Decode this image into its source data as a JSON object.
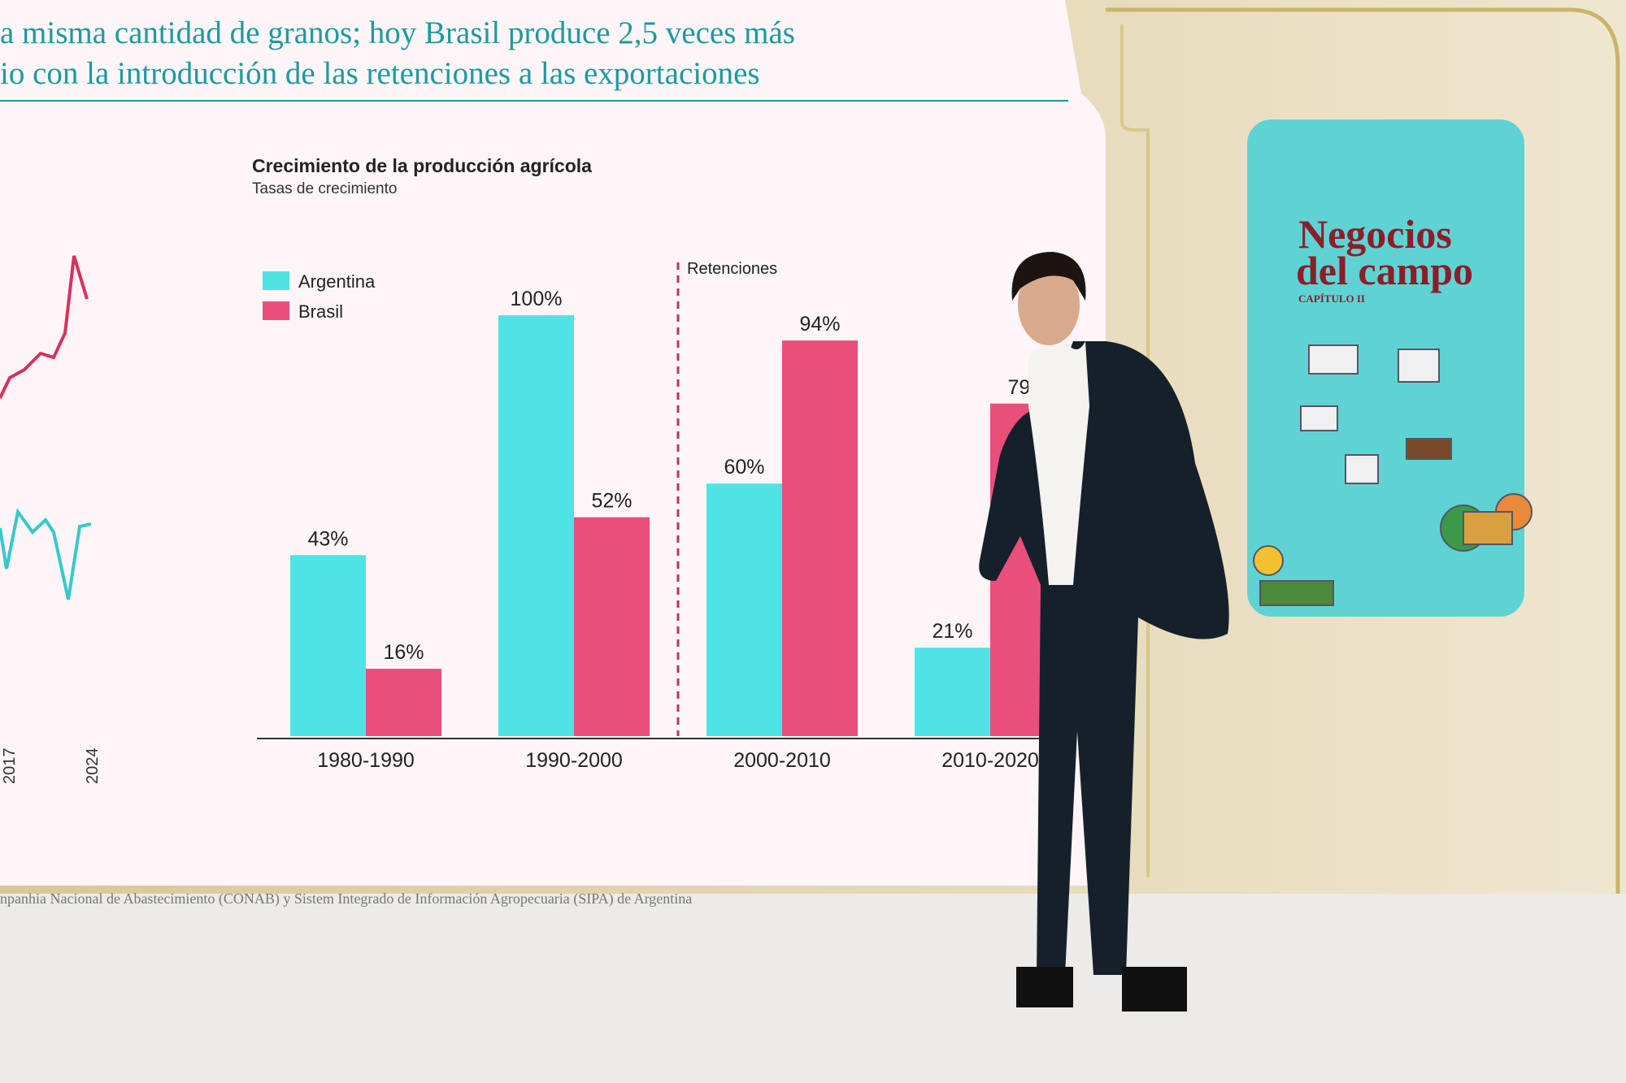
{
  "headline": [
    "a misma cantidad de granos; hoy Brasil produce 2,5 veces más",
    "io con la introducción de las retenciones a las exportaciones"
  ],
  "left_chart_labels": [
    "2017",
    "2024"
  ],
  "source": "npanhia Nacional de Abastecimiento (CONAB) y Sistem Integrado de Información Agropecuaria (SIPA) de Argentina",
  "side_panel": {
    "title_line1": "Negocios",
    "title_line2": "del campo",
    "chapter": "CAPÍTULO II"
  },
  "chart_data": {
    "type": "bar",
    "title": "Crecimiento de la producción agrícola",
    "subtitle": "Tasas de crecimiento",
    "categories": [
      "1980-1990",
      "1990-2000",
      "2000-2010",
      "2010-2020"
    ],
    "series": [
      {
        "name": "Argentina",
        "color": "#4fe3e6",
        "values": [
          43,
          100,
          60,
          21
        ],
        "value_labels": [
          "43%",
          "100%",
          "60%",
          "21%"
        ]
      },
      {
        "name": "Brasil",
        "color": "#ea4f7b",
        "values": [
          16,
          52,
          94,
          79
        ],
        "value_labels": [
          "16%",
          "52%",
          "94%",
          "79%"
        ]
      }
    ],
    "annotation": "Retenciones",
    "annotation_after_category": 1,
    "annotation_color": "#c0325a"
  }
}
